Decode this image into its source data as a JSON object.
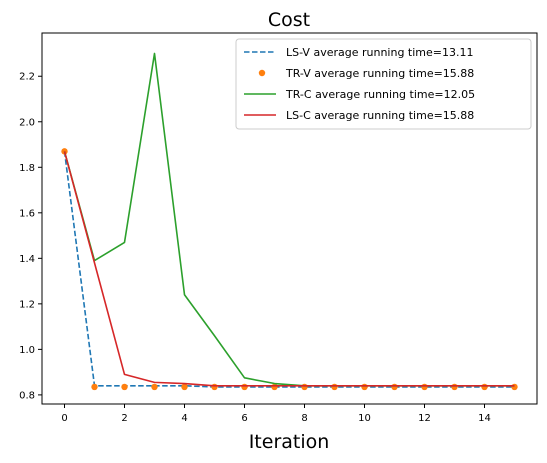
{
  "chart_data": {
    "type": "line",
    "title": "Cost",
    "xlabel": "Iteration",
    "ylabel": "",
    "xlim": [
      -0.75,
      15.75
    ],
    "ylim": [
      0.76,
      2.39
    ],
    "xticks": [
      0,
      2,
      4,
      6,
      8,
      10,
      12,
      14
    ],
    "yticks": [
      0.8,
      1.0,
      1.2,
      1.4,
      1.6,
      1.8,
      2.0,
      2.2
    ],
    "grid": false,
    "legend_position": "top-right",
    "x": [
      0,
      1,
      2,
      3,
      4,
      5,
      6,
      7,
      8,
      9,
      10,
      11,
      12,
      13,
      14,
      15
    ],
    "series": [
      {
        "name": "LS-V average running time=13.11",
        "style": "dashed",
        "color": "#1f77b4",
        "values": [
          1.87,
          0.84,
          0.84,
          0.84,
          0.84,
          0.835,
          0.835,
          0.835,
          0.835,
          0.835,
          0.835,
          0.835,
          0.835,
          0.835,
          0.835,
          0.835
        ]
      },
      {
        "name": "TR-V average running time=15.88",
        "style": "dots",
        "color": "#ff7f0e",
        "values": [
          1.87,
          0.835,
          0.835,
          0.835,
          0.835,
          0.835,
          0.835,
          0.835,
          0.835,
          0.835,
          0.835,
          0.835,
          0.835,
          0.835,
          0.835,
          0.835
        ]
      },
      {
        "name": "TR-C average running time=12.05",
        "style": "solid",
        "color": "#2ca02c",
        "values": [
          1.87,
          1.39,
          1.47,
          2.3,
          1.24,
          1.06,
          0.875,
          0.85,
          0.84,
          0.84,
          0.84,
          0.84,
          0.84,
          0.84,
          0.84,
          0.84
        ]
      },
      {
        "name": "LS-C average running time=15.88",
        "style": "solid",
        "color": "#d62728",
        "values": [
          1.87,
          1.38,
          0.89,
          0.855,
          0.85,
          0.84,
          0.84,
          0.84,
          0.84,
          0.84,
          0.84,
          0.84,
          0.84,
          0.84,
          0.84,
          0.84
        ]
      }
    ]
  }
}
